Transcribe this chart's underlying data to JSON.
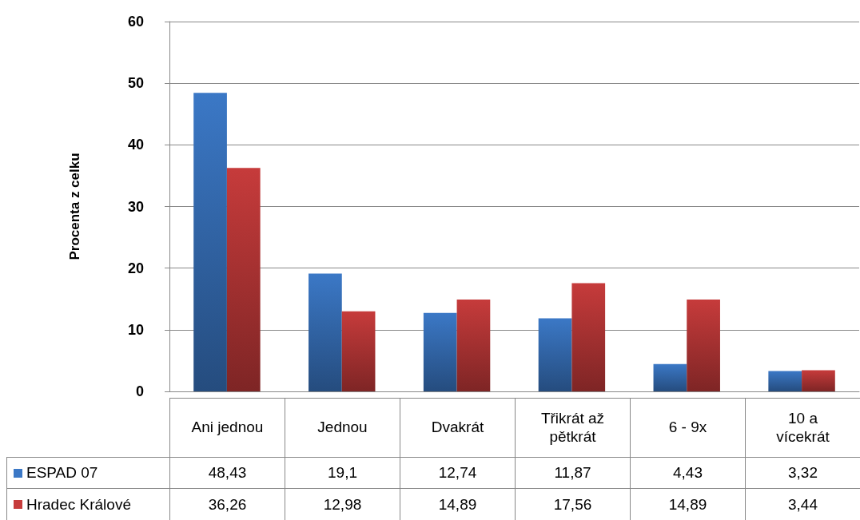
{
  "chart_data": {
    "type": "bar",
    "ylabel": "Procenta z celku",
    "categories": [
      "Ani jednou",
      "Jednou",
      "Dvakrát",
      "Třikrát až pětkrát",
      "6 - 9x",
      "10 a vícekrát"
    ],
    "series": [
      {
        "name": "ESPAD 07",
        "color": "#3b78c6",
        "values": [
          48.43,
          19.1,
          12.74,
          11.87,
          4.43,
          3.32
        ],
        "value_labels": [
          "48,43",
          "19,1",
          "12,74",
          "11,87",
          "4,43",
          "3,32"
        ]
      },
      {
        "name": "Hradec Králové",
        "color": "#c63b3b",
        "values": [
          36.26,
          12.98,
          14.89,
          17.56,
          14.89,
          3.44
        ],
        "value_labels": [
          "36,26",
          "12,98",
          "14,89",
          "17,56",
          "14,89",
          "3,44"
        ]
      }
    ],
    "ylim": [
      0,
      60
    ],
    "yticks": [
      0,
      10,
      20,
      30,
      40,
      50,
      60
    ],
    "grid": "y",
    "legend": "bottom",
    "data_labels": true
  }
}
